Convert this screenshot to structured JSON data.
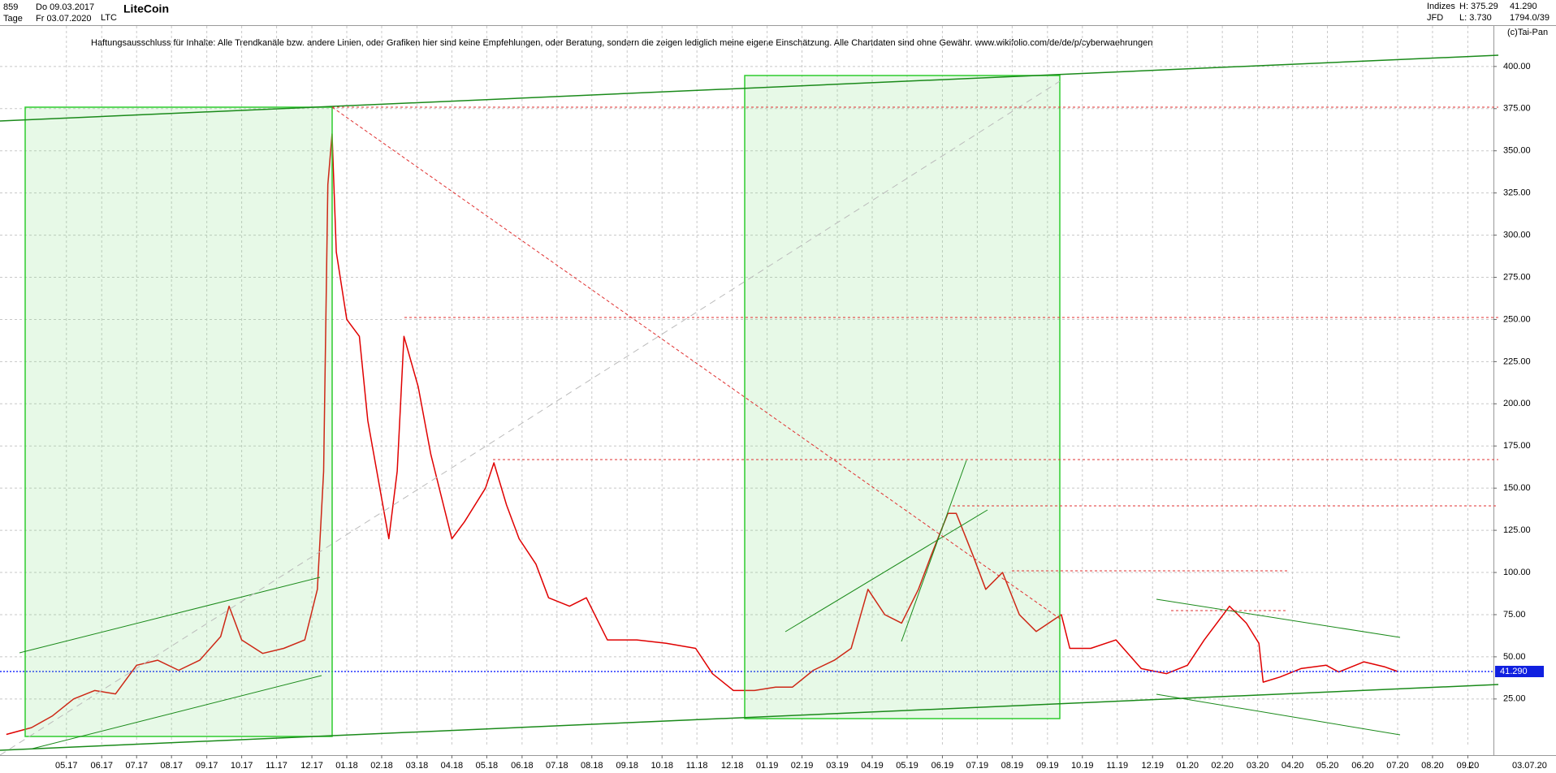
{
  "header": {
    "count": "859",
    "start_date": "Do 09.03.2017",
    "interval": "Tage",
    "end_date": "Fr 03.07.2020",
    "symbol": "LTC",
    "group": "Indizes",
    "source": "JFD",
    "high": "H: 375.29",
    "low": "L: 3.730",
    "last": "41.290",
    "bars": "1794.0/39",
    "copyright": "(c)Tai-Pan",
    "scale_mode": "L",
    "last_date": "03.07.20"
  },
  "chart_data": {
    "type": "line",
    "title": "LiteCoin",
    "subtitle": "Haftungsausschluss für Inhalte: Alle Trendkanäle bzw. andere Linien, oder Grafiken hier sind keine Empfehlungen, oder Beratung, sondern die zeigen lediglich meine eigene Einschätzung. Alle Chartdaten sind ohne Gewähr.  www.wikifolio.com/de/de/p/cyberwaehrungen",
    "color": "#e00000",
    "x": [
      2017.19,
      2017.25,
      2017.3,
      2017.35,
      2017.4,
      2017.45,
      2017.5,
      2017.55,
      2017.6,
      2017.65,
      2017.7,
      2017.72,
      2017.75,
      2017.8,
      2017.85,
      2017.9,
      2017.93,
      2017.945,
      2017.955,
      2017.965,
      2017.975,
      2018.0,
      2018.03,
      2018.05,
      2018.1,
      2018.12,
      2018.136,
      2018.17,
      2018.2,
      2018.25,
      2018.28,
      2018.33,
      2018.35,
      2018.38,
      2018.41,
      2018.45,
      2018.48,
      2018.53,
      2018.57,
      2018.62,
      2018.69,
      2018.76,
      2018.83,
      2018.87,
      2018.92,
      2018.97,
      2019.02,
      2019.06,
      2019.11,
      2019.16,
      2019.2,
      2019.24,
      2019.28,
      2019.32,
      2019.36,
      2019.39,
      2019.43,
      2019.45,
      2019.49,
      2019.52,
      2019.56,
      2019.6,
      2019.64,
      2019.7,
      2019.72,
      2019.77,
      2019.83,
      2019.89,
      2019.95,
      2020.0,
      2020.04,
      2020.1,
      2020.14,
      2020.17,
      2020.18,
      2020.22,
      2020.27,
      2020.33,
      2020.36,
      2020.42,
      2020.47,
      2020.5
    ],
    "values": [
      4,
      8,
      15,
      25,
      30,
      28,
      45,
      48,
      42,
      48,
      62,
      80,
      60,
      52,
      55,
      60,
      90,
      160,
      330,
      360,
      290,
      250,
      240,
      190,
      120,
      160,
      240,
      210,
      170,
      120,
      130,
      150,
      165,
      140,
      120,
      105,
      85,
      80,
      85,
      60,
      60,
      58,
      55,
      40,
      30,
      30,
      32,
      32,
      42,
      48,
      55,
      90,
      75,
      70,
      90,
      110,
      135,
      135,
      110,
      90,
      100,
      75,
      65,
      75,
      55,
      55,
      60,
      43,
      40,
      45,
      60,
      80,
      70,
      58,
      35,
      38,
      43,
      45,
      41,
      47,
      44,
      41.29
    ],
    "last_price": {
      "value": 41.29,
      "label": "41.290"
    },
    "xlim": [
      2017.175,
      2020.728
    ],
    "xticks": [
      {
        "value": 2017.333,
        "label": "05.17"
      },
      {
        "value": 2017.417,
        "label": "06.17"
      },
      {
        "value": 2017.5,
        "label": "07.17"
      },
      {
        "value": 2017.583,
        "label": "08.17"
      },
      {
        "value": 2017.667,
        "label": "09.17"
      },
      {
        "value": 2017.75,
        "label": "10.17"
      },
      {
        "value": 2017.833,
        "label": "11.17"
      },
      {
        "value": 2017.917,
        "label": "12.17"
      },
      {
        "value": 2018.0,
        "label": "01.18"
      },
      {
        "value": 2018.083,
        "label": "02.18"
      },
      {
        "value": 2018.167,
        "label": "03.18"
      },
      {
        "value": 2018.25,
        "label": "04.18"
      },
      {
        "value": 2018.333,
        "label": "05.18"
      },
      {
        "value": 2018.417,
        "label": "06.18"
      },
      {
        "value": 2018.5,
        "label": "07.18"
      },
      {
        "value": 2018.583,
        "label": "08.18"
      },
      {
        "value": 2018.667,
        "label": "09.18"
      },
      {
        "value": 2018.75,
        "label": "10.18"
      },
      {
        "value": 2018.833,
        "label": "11.18"
      },
      {
        "value": 2018.917,
        "label": "12.18"
      },
      {
        "value": 2019.0,
        "label": "01.19"
      },
      {
        "value": 2019.083,
        "label": "02.19"
      },
      {
        "value": 2019.167,
        "label": "03.19"
      },
      {
        "value": 2019.25,
        "label": "04.19"
      },
      {
        "value": 2019.333,
        "label": "05.19"
      },
      {
        "value": 2019.417,
        "label": "06.19"
      },
      {
        "value": 2019.5,
        "label": "07.19"
      },
      {
        "value": 2019.583,
        "label": "08.19"
      },
      {
        "value": 2019.667,
        "label": "09.19"
      },
      {
        "value": 2019.75,
        "label": "10.19"
      },
      {
        "value": 2019.833,
        "label": "11.19"
      },
      {
        "value": 2019.917,
        "label": "12.19"
      },
      {
        "value": 2020.0,
        "label": "01.20"
      },
      {
        "value": 2020.083,
        "label": "02.20"
      },
      {
        "value": 2020.167,
        "label": "03.20"
      },
      {
        "value": 2020.25,
        "label": "04.20"
      },
      {
        "value": 2020.333,
        "label": "05.20"
      },
      {
        "value": 2020.417,
        "label": "06.20"
      },
      {
        "value": 2020.5,
        "label": "07.20"
      },
      {
        "value": 2020.583,
        "label": "08.20"
      },
      {
        "value": 2020.667,
        "label": "09.20"
      }
    ],
    "ylim": [
      -3,
      424
    ],
    "yticks": [
      {
        "value": 25,
        "label": "25.00"
      },
      {
        "value": 50,
        "label": "50.00"
      },
      {
        "value": 75,
        "label": "75.00"
      },
      {
        "value": 100,
        "label": "100.00"
      },
      {
        "value": 125,
        "label": "125.00"
      },
      {
        "value": 150,
        "label": "150.00"
      },
      {
        "value": 175,
        "label": "175.00"
      },
      {
        "value": 200,
        "label": "200.00"
      },
      {
        "value": 225,
        "label": "225.00"
      },
      {
        "value": 250,
        "label": "250.00"
      },
      {
        "value": 275,
        "label": "275.00"
      },
      {
        "value": 300,
        "label": "300.00"
      },
      {
        "value": 325,
        "label": "325.00"
      },
      {
        "value": 350,
        "label": "350.00"
      },
      {
        "value": 375,
        "label": "375.00"
      },
      {
        "value": 400,
        "label": "400.00"
      }
    ],
    "grid": true
  }
}
